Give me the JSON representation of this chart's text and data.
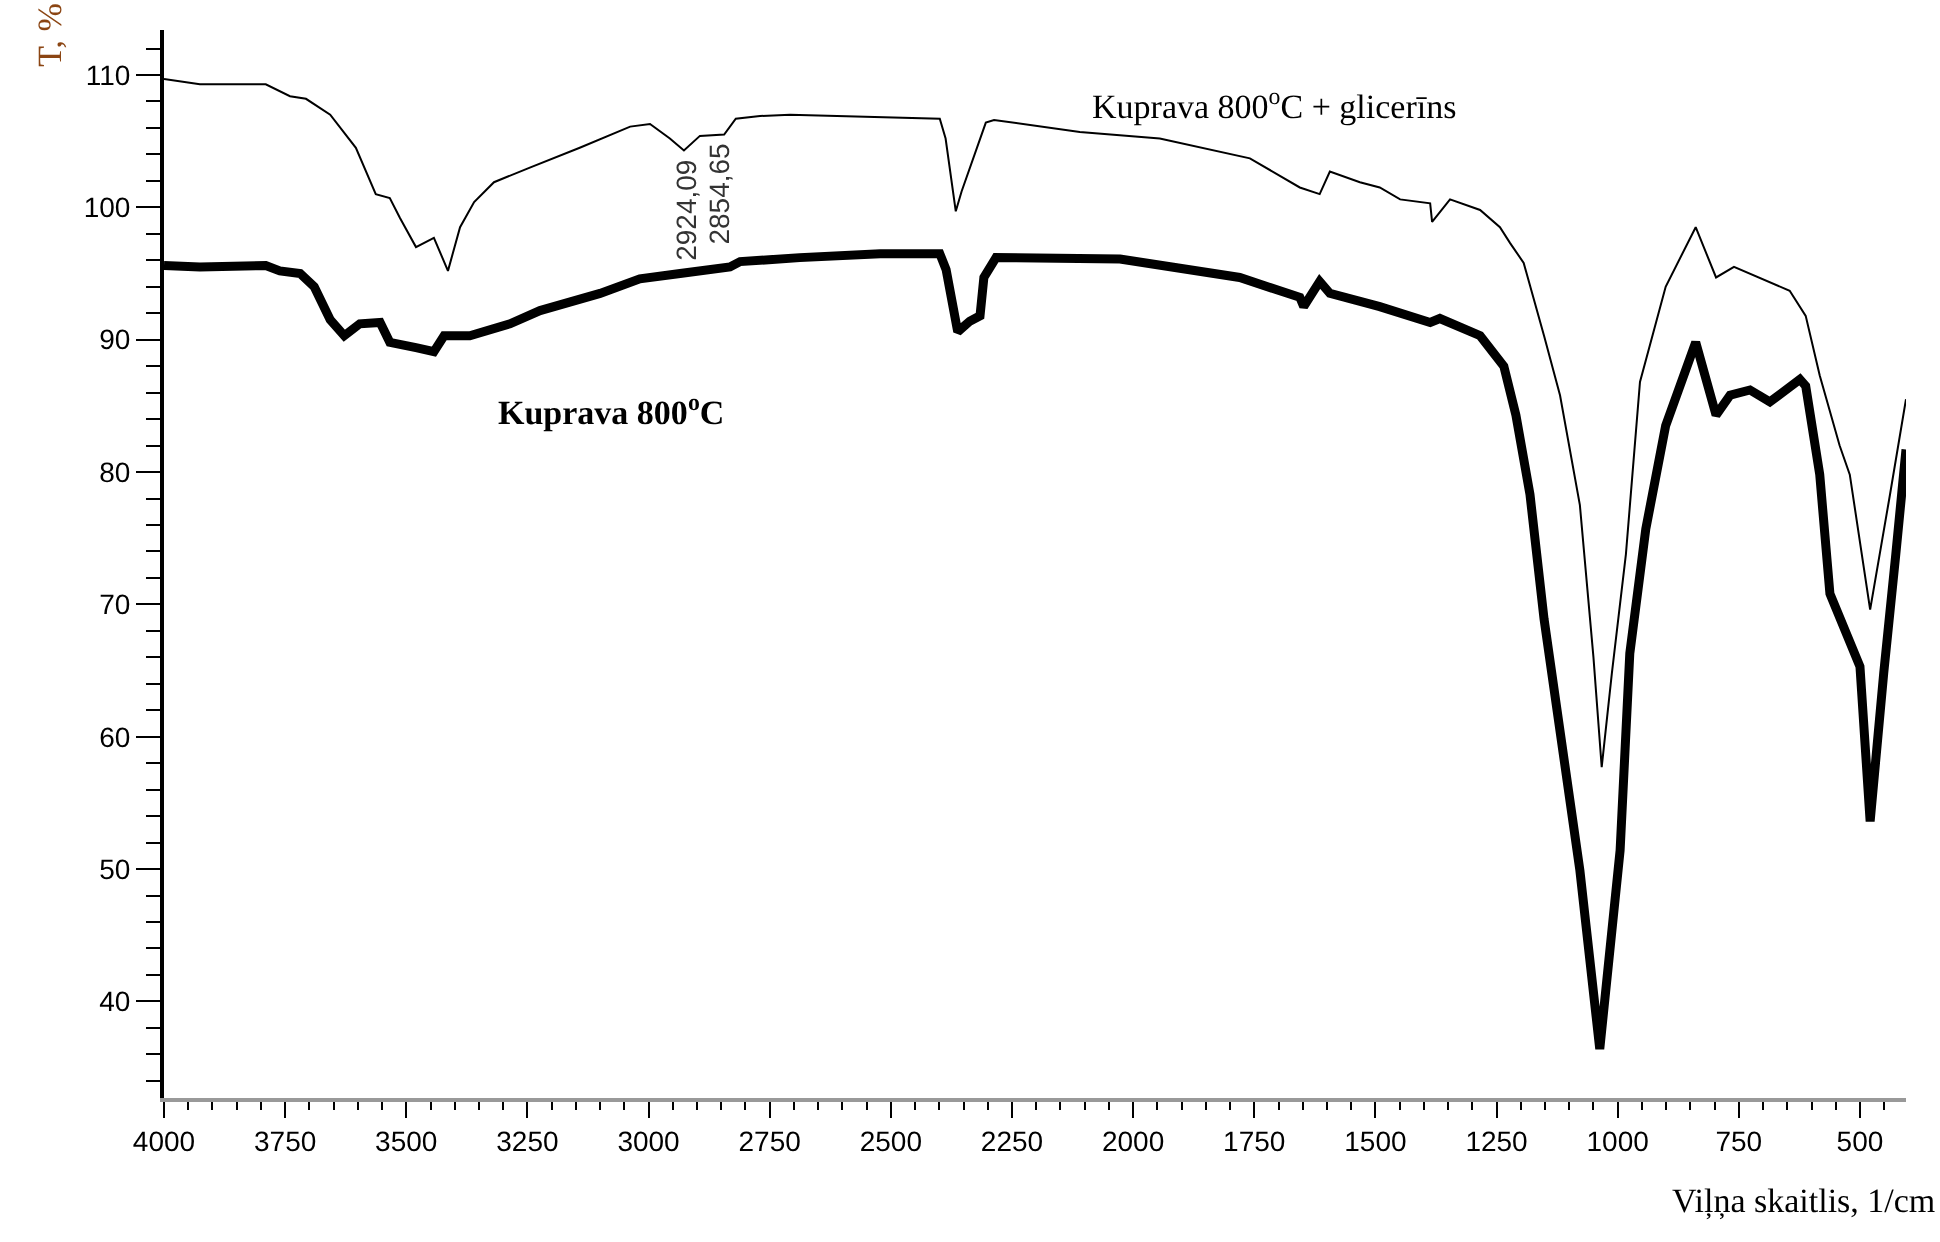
{
  "chart_data": {
    "type": "line",
    "xlabel": "Viļņa skaitlis, 1/cm",
    "ylabel": "T, %",
    "xlim": [
      4000,
      405
    ],
    "ylim": [
      32.7,
      113.4
    ],
    "xticks": [
      4000,
      3750,
      3500,
      3250,
      3000,
      2750,
      2500,
      2250,
      2000,
      1750,
      1500,
      1250,
      1000,
      750,
      500
    ],
    "yticks": [
      40,
      50,
      60,
      70,
      80,
      90,
      100,
      110
    ],
    "legend": false,
    "marker": "none",
    "series": [
      {
        "name": "Kuprava 800$^{o}$C + glicerīns",
        "color": "#000000",
        "line_style": "solid",
        "x": [
          4000,
          3926,
          3790,
          3740,
          3707,
          3657,
          3604,
          3563,
          3534,
          3513,
          3480,
          3443,
          3414,
          3389,
          3360,
          3319,
          3245,
          3142,
          3038,
          2997,
          2956,
          2927,
          2894,
          2844,
          2820,
          2770,
          2708,
          2399,
          2387,
          2366,
          2354,
          2304,
          2287,
          2110,
          1945,
          1759,
          1656,
          1615,
          1594,
          1532,
          1491,
          1449,
          1387,
          1383,
          1346,
          1284,
          1243,
          1222,
          1194,
          1152,
          1119,
          1078,
          1050,
          1033,
          1012,
          983,
          954,
          901,
          839,
          797,
          760,
          645,
          612,
          583,
          542,
          521,
          479,
          438,
          405
        ],
        "values": [
          109.7,
          109.3,
          109.3,
          108.4,
          108.2,
          107.0,
          104.5,
          101.0,
          100.7,
          99.2,
          97.0,
          97.7,
          95.2,
          98.5,
          100.4,
          101.9,
          103.0,
          104.5,
          106.1,
          106.3,
          105.2,
          104.3,
          105.4,
          105.5,
          106.7,
          106.9,
          107.0,
          106.7,
          105.2,
          99.7,
          101.2,
          106.4,
          106.6,
          105.7,
          105.2,
          103.7,
          101.5,
          101.0,
          102.7,
          101.9,
          101.5,
          100.6,
          100.3,
          98.9,
          100.6,
          99.8,
          98.5,
          97.3,
          95.8,
          90.3,
          85.8,
          77.5,
          66.0,
          57.7,
          64.8,
          73.8,
          86.8,
          94.0,
          98.5,
          94.7,
          95.5,
          93.7,
          91.8,
          87.3,
          82.0,
          79.8,
          69.6,
          78.3,
          85.5
        ]
      },
      {
        "name": "Kuprava 800$^{o}$C",
        "color": "#000000",
        "line_style": "solid",
        "x": [
          4000,
          3926,
          3790,
          3761,
          3719,
          3690,
          3657,
          3628,
          3596,
          3554,
          3534,
          3480,
          3443,
          3422,
          3369,
          3286,
          3224,
          3100,
          3018,
          2935,
          2832,
          2811,
          2688,
          2522,
          2399,
          2386,
          2362,
          2337,
          2316,
          2308,
          2283,
          2027,
          1780,
          1656,
          1648,
          1615,
          1594,
          1491,
          1387,
          1367,
          1284,
          1235,
          1210,
          1181,
          1152,
          1078,
          1037,
          995,
          975,
          942,
          901,
          839,
          797,
          768,
          727,
          686,
          624,
          612,
          583,
          562,
          500,
          479,
          451,
          426,
          405
        ],
        "values": [
          95.6,
          95.5,
          95.6,
          95.2,
          95.0,
          94.0,
          91.5,
          90.3,
          91.2,
          91.3,
          89.8,
          89.4,
          89.1,
          90.3,
          90.3,
          91.2,
          92.2,
          93.5,
          94.6,
          95.0,
          95.5,
          95.9,
          96.2,
          96.5,
          96.5,
          95.3,
          90.6,
          91.4,
          91.8,
          94.7,
          96.2,
          96.1,
          94.7,
          93.2,
          92.5,
          94.4,
          93.5,
          92.5,
          91.3,
          91.6,
          90.3,
          88.0,
          84.3,
          78.3,
          68.9,
          49.9,
          36.4,
          51.4,
          66.3,
          75.7,
          83.5,
          89.8,
          84.3,
          85.8,
          86.2,
          85.3,
          87.0,
          86.5,
          79.8,
          70.8,
          65.3,
          53.6,
          64.8,
          73.8,
          81.7
        ]
      }
    ],
    "annotations": [
      {
        "text": "2924,09",
        "x": 2924.09,
        "y": 104.3
      },
      {
        "text": "2854,65",
        "x": 2854.65,
        "y": 105.5
      }
    ]
  }
}
